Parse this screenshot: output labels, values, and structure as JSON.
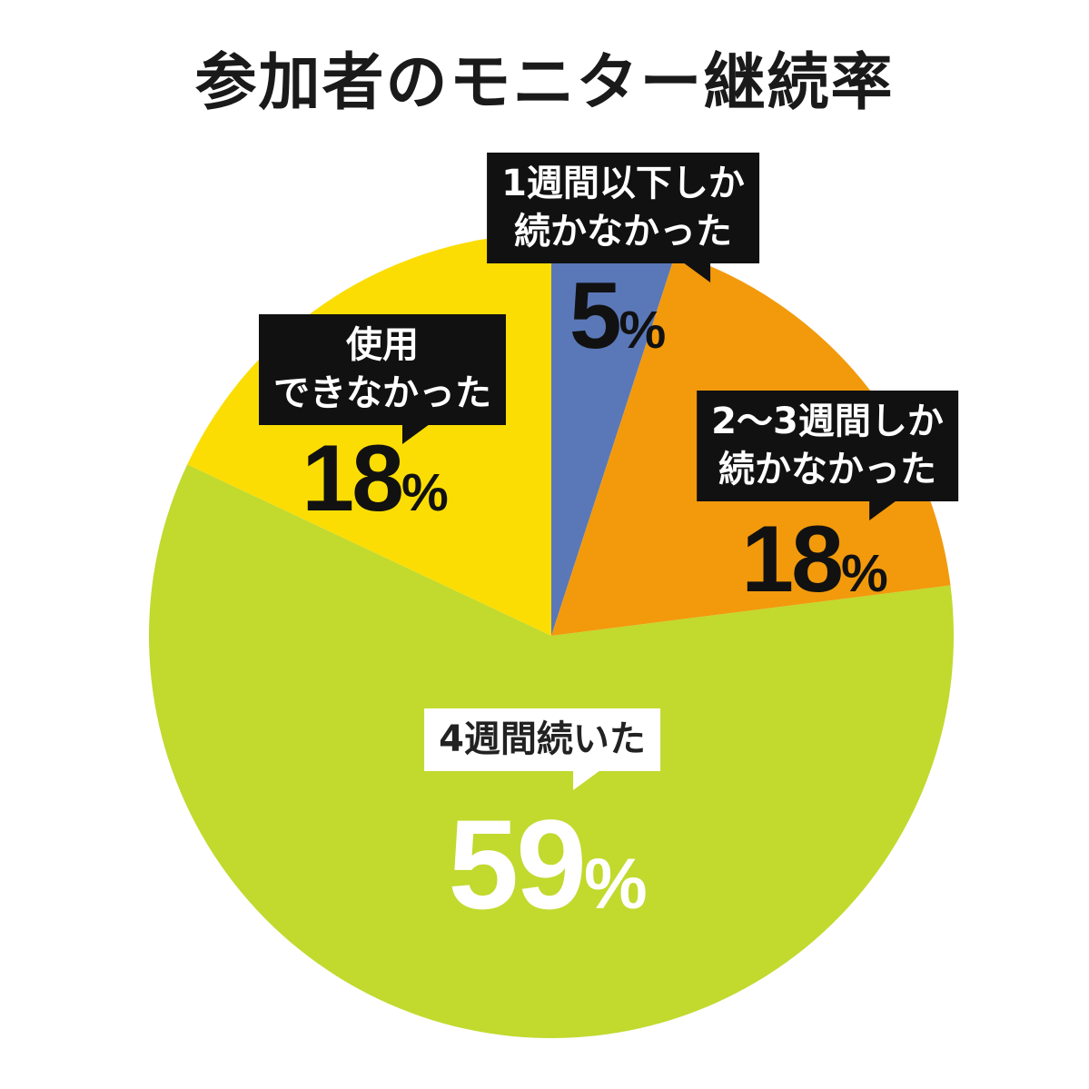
{
  "page": {
    "title": "参加者のモニター継続率"
  },
  "chart_data": {
    "type": "pie",
    "title": "参加者のモニター継続率",
    "unit": "%",
    "start_angle_deg": 0,
    "direction": "clockwise",
    "slices": [
      {
        "label_lines": [
          "1週間以下しか",
          "続かなかった"
        ],
        "value": 5,
        "value_text": "5",
        "color": "#5a78b8"
      },
      {
        "label_lines": [
          "2〜3週間しか",
          "続かなかった"
        ],
        "value": 18,
        "value_text": "18",
        "color": "#f29a0c"
      },
      {
        "label_lines": [
          "4週間続いた"
        ],
        "value": 59,
        "value_text": "59",
        "color": "#c2d92e"
      },
      {
        "label_lines": [
          "使用",
          "できなかった"
        ],
        "value": 18,
        "value_text": "18",
        "color": "#fbdd04"
      }
    ]
  }
}
